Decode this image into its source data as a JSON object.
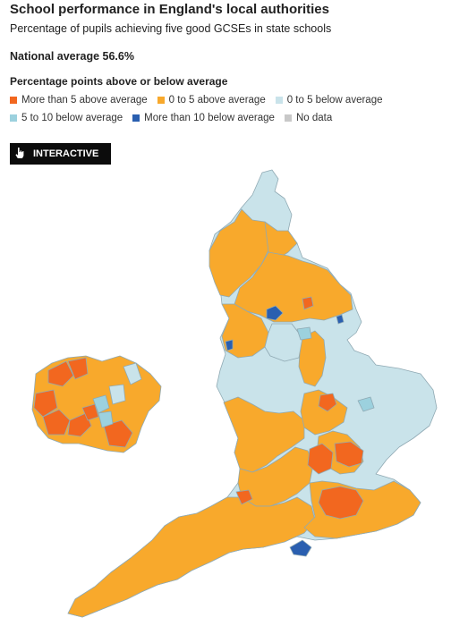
{
  "header": {
    "title": "School performance in England's local authorities",
    "subtitle": "Percentage of pupils achieving five good GCSEs in state schools",
    "average": "National average 56.6%"
  },
  "legend": {
    "title": "Percentage points above or below average",
    "items": [
      {
        "label": "More than 5 above average",
        "color": "#f2671f"
      },
      {
        "label": "0 to 5 above average",
        "color": "#f8a92c"
      },
      {
        "label": "0 to 5 below average",
        "color": "#c9e3ea"
      },
      {
        "label": "5 to 10 below average",
        "color": "#9cd1de"
      },
      {
        "label": "More than 10 below average",
        "color": "#2a5fb0"
      },
      {
        "label": "No data",
        "color": "#c8c8c8"
      }
    ]
  },
  "button": {
    "label": "INTERACTIVE",
    "icon": "hand-pointer-icon"
  },
  "colors": {
    "above5": "#f2671f",
    "above0": "#f8a92c",
    "below0": "#c9e3ea",
    "below5": "#9cd1de",
    "below10": "#2a5fb0",
    "border": "#8fa9b3"
  }
}
